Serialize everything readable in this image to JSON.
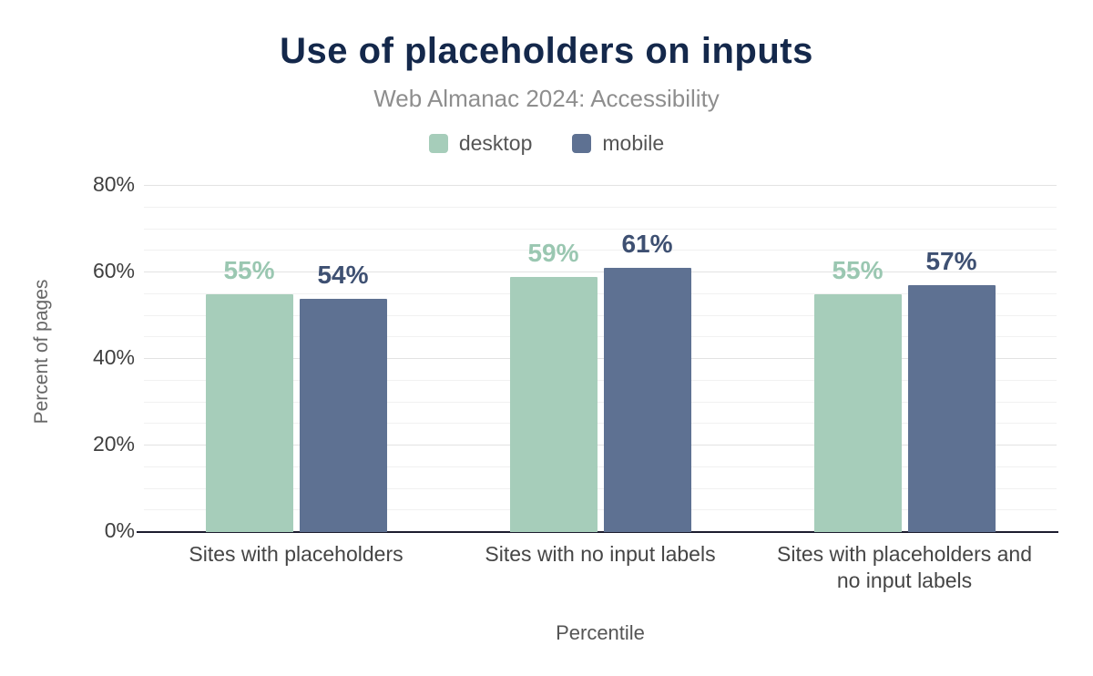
{
  "header": {
    "title": "Use of placeholders on inputs",
    "subtitle": "Web Almanac 2024: Accessibility"
  },
  "chart_data": {
    "type": "bar",
    "title": "Use of placeholders on inputs",
    "subtitle": "Web Almanac 2024: Accessibility",
    "xlabel": "Percentile",
    "ylabel": "Percent of pages",
    "ylim": [
      0,
      80
    ],
    "ytick_step": 20,
    "minor_grid_step": 5,
    "grid": true,
    "legend_position": "top",
    "categories": [
      "Sites with placeholders",
      "Sites with no input labels",
      "Sites with placeholders and no input labels"
    ],
    "series": [
      {
        "name": "desktop",
        "color": "#a6cdba",
        "label_color": "#9ac7b1",
        "values": [
          55,
          59,
          55
        ]
      },
      {
        "name": "mobile",
        "color": "#5e7192",
        "label_color": "#3e5072",
        "values": [
          54,
          61,
          57
        ]
      }
    ],
    "colors": {
      "title": "#14284b",
      "subtitle": "#8e8e8e",
      "axis_line": "#1c1c2e",
      "major_grid": "#e3e3e3",
      "minor_grid": "#f1f1f1"
    }
  }
}
